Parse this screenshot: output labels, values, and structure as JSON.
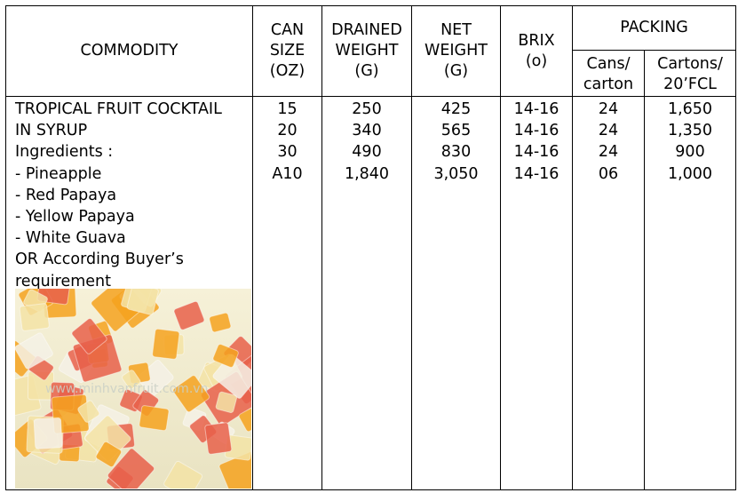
{
  "headers": {
    "commodity": "COMMODITY",
    "can_size": [
      "CAN",
      "SIZE",
      "(OZ)"
    ],
    "drained_weight": [
      "DRAINED",
      "WEIGHT",
      "(G)"
    ],
    "net_weight": [
      "NET",
      "WEIGHT",
      "(G)"
    ],
    "brix": [
      "BRIX",
      "(o)"
    ],
    "packing": "PACKING",
    "cans_per_carton": [
      "Cans/",
      "carton"
    ],
    "cartons_per_fcl": [
      "Cartons/",
      "20’FCL"
    ]
  },
  "commodity_lines": [
    "TROPICAL FRUIT COCKTAIL",
    "IN SYRUP",
    "Ingredients :",
    "- Pineapple",
    "- Red Papaya",
    "- Yellow Papaya",
    "- White Guava",
    "OR According Buyer’s",
    "requirement"
  ],
  "rows": [
    {
      "can_size": "15",
      "drained": "250",
      "net": "425",
      "brix": "14-16",
      "cans": "24",
      "cartons": "1,650"
    },
    {
      "can_size": "20",
      "drained": "340",
      "net": "565",
      "brix": "14-16",
      "cans": "24",
      "cartons": "1,350"
    },
    {
      "can_size": "30",
      "drained": "490",
      "net": "830",
      "brix": "14-16",
      "cans": "24",
      "cartons": "900"
    },
    {
      "can_size": "A10",
      "drained": "1,840",
      "net": "3,050",
      "brix": "14-16",
      "cans": "06",
      "cartons": "1,000"
    }
  ],
  "photo": {
    "watermark": "www.minhvanfruit.com.vn",
    "colors": {
      "pineapple": "#f3e3a6",
      "red_papaya": "#e8604a",
      "yellow_papaya": "#f4a21e",
      "white_guava": "#f4f1e6"
    }
  }
}
